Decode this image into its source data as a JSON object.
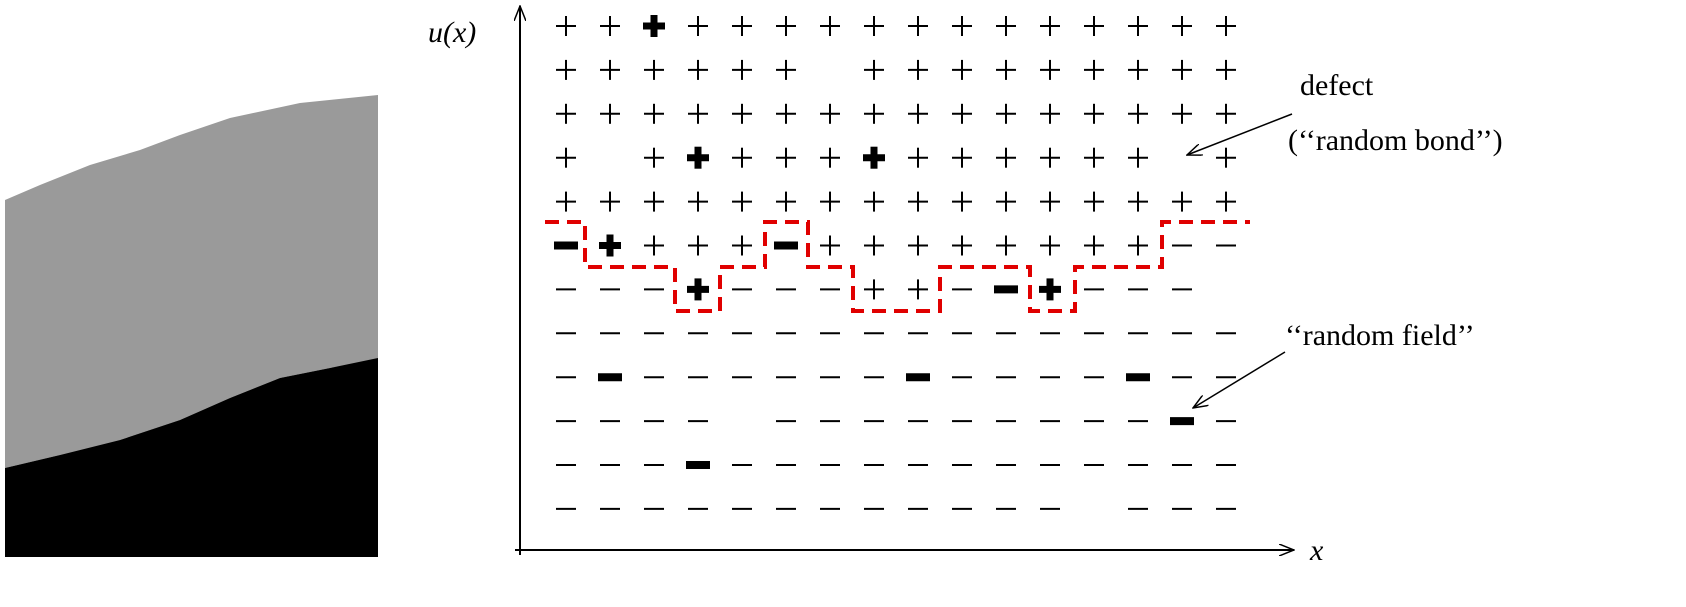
{
  "axes": {
    "y_label": "u(x)",
    "x_label": "x"
  },
  "annotations": {
    "defect": "defect",
    "random_bond": "(‘‘random bond’’)",
    "random_field": "‘‘random field’’"
  }
}
